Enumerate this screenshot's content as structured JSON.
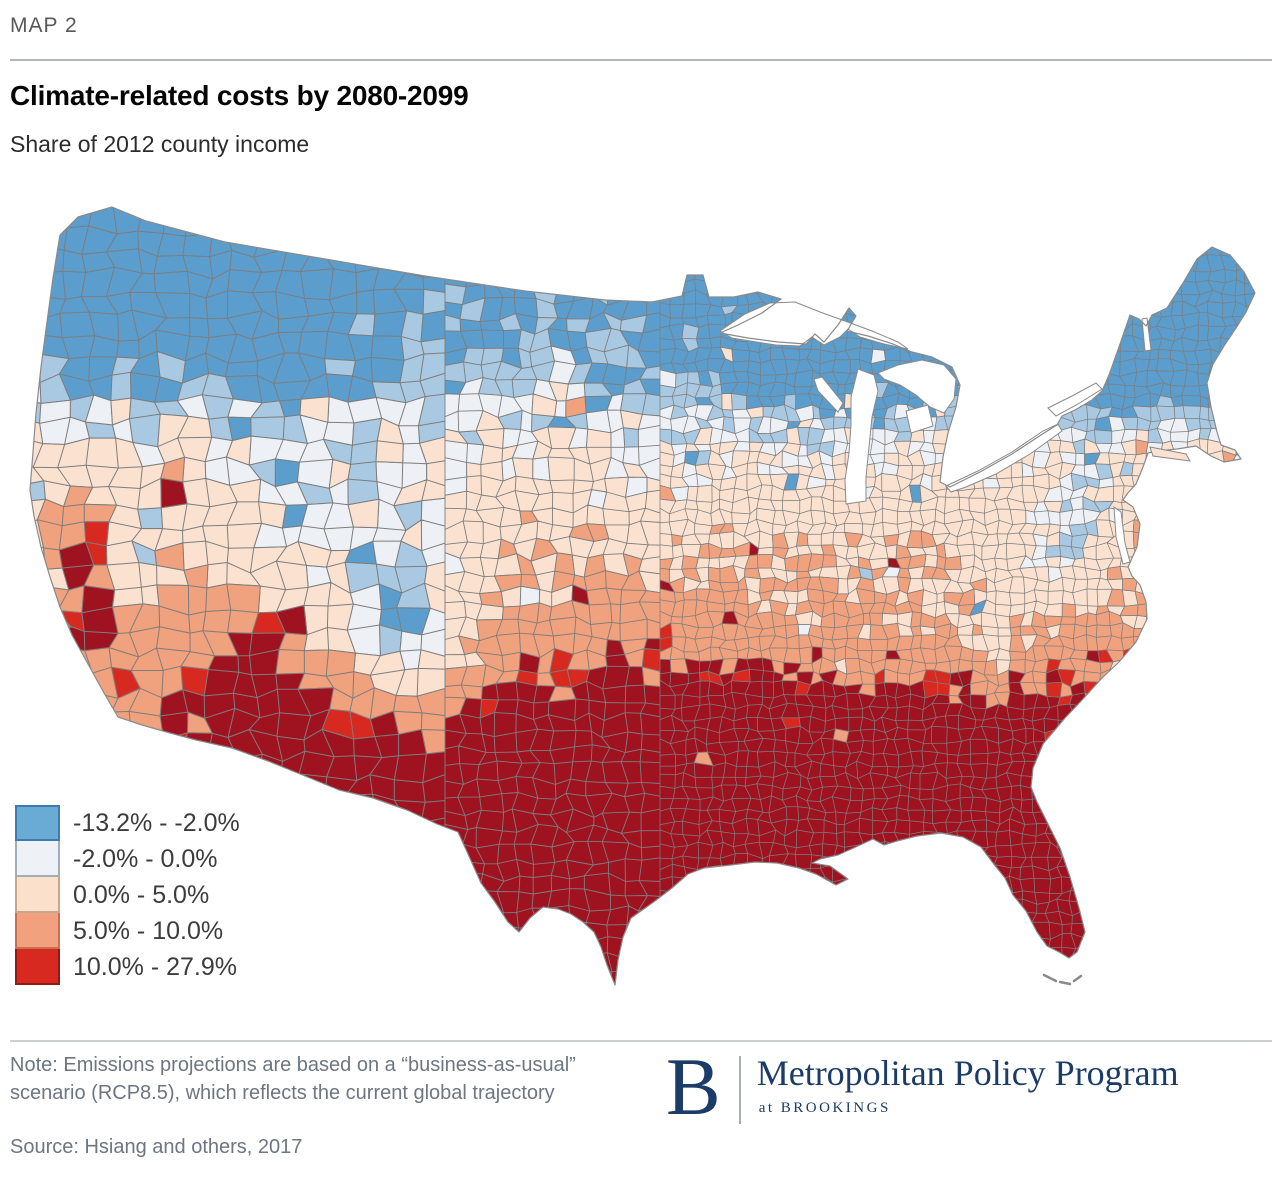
{
  "kicker": "MAP 2",
  "title": "Climate-related costs by 2080-2099",
  "subtitle": "Share of 2012 county income",
  "legend": {
    "bins": [
      {
        "label": "-13.2% - -2.0%",
        "fill": "#6aabd6",
        "border": "#3e7cb0"
      },
      {
        "label": "-2.0% - 0.0%",
        "fill": "#eef2f7",
        "border": "#a2adb8"
      },
      {
        "label": "0.0% - 5.0%",
        "fill": "#fbe0cc",
        "border": "#c9a68e"
      },
      {
        "label": "5.0% - 10.0%",
        "fill": "#f1a17e",
        "border": "#c47250"
      },
      {
        "label": "10.0% - 27.9%",
        "fill": "#d7291f",
        "border": "#901b12"
      }
    ]
  },
  "map": {
    "county_border_color": "#7d7d7d",
    "outline_color": "#8a8a8a",
    "water_color": "#ffffff",
    "palette": {
      "strong_blue": "#5b9dcd",
      "light_blue": "#a9c9e2",
      "pale_blue": "#edf1f6",
      "cream": "#fbe2d0",
      "salmon": "#f0a17d",
      "bright_red": "#d7291f",
      "dark_red": "#9f1320"
    }
  },
  "footer": {
    "note": "Note: Emissions projections are based on a “business-as-usual” scenario (RCP8.5), which reflects the current global trajectory",
    "source": "Source: Hsiang and others, 2017",
    "logo": {
      "letter": "B",
      "program": "Metropolitan Policy Program",
      "affiliation": "at BROOKINGS",
      "color": "#1b3b69"
    }
  },
  "chart_data": {
    "type": "choropleth",
    "title": "Climate-related costs by 2080-2099",
    "subtitle": "Share of 2012 county income",
    "geography": "Contiguous United States, county level",
    "units": "percent of 2012 county income",
    "value_min": -13.2,
    "value_max": 27.9,
    "bins": [
      {
        "range_min": -13.2,
        "range_max": -2.0,
        "label": "-13.2% - -2.0%",
        "color": "#6aabd6"
      },
      {
        "range_min": -2.0,
        "range_max": 0.0,
        "label": "-2.0% - 0.0%",
        "color": "#eef2f7"
      },
      {
        "range_min": 0.0,
        "range_max": 5.0,
        "label": "0.0% - 5.0%",
        "color": "#fbe0cc"
      },
      {
        "range_min": 5.0,
        "range_max": 10.0,
        "label": "5.0% - 10.0%",
        "color": "#f1a17e"
      },
      {
        "range_min": 10.0,
        "range_max": 27.9,
        "label": "10.0% - 27.9%",
        "color": "#d7291f"
      }
    ],
    "regional_pattern": [
      {
        "region": "Pacific Northwest, northern Rockies, Upper Midwest, New England",
        "typical_bin": "-13.2% - -2.0%"
      },
      {
        "region": "Colorado Rockies and central Appalachians",
        "typical_bin": "-13.2% - -2.0%"
      },
      {
        "region": "Central Plains, Ohio Valley, mid-Atlantic, interior Northeast",
        "typical_bin": "-2.0% - 5.0%"
      },
      {
        "region": "Lower Midwest, mid-South, Kansas through Kentucky",
        "typical_bin": "5.0% - 10.0%"
      },
      {
        "region": "Deep South, Gulf Coast, Texas, Florida, coastal Carolinas, southern Arizona",
        "typical_bin": "10.0% - 27.9%"
      }
    ],
    "legend_position": "bottom-left",
    "source": "Hsiang and others, 2017"
  }
}
